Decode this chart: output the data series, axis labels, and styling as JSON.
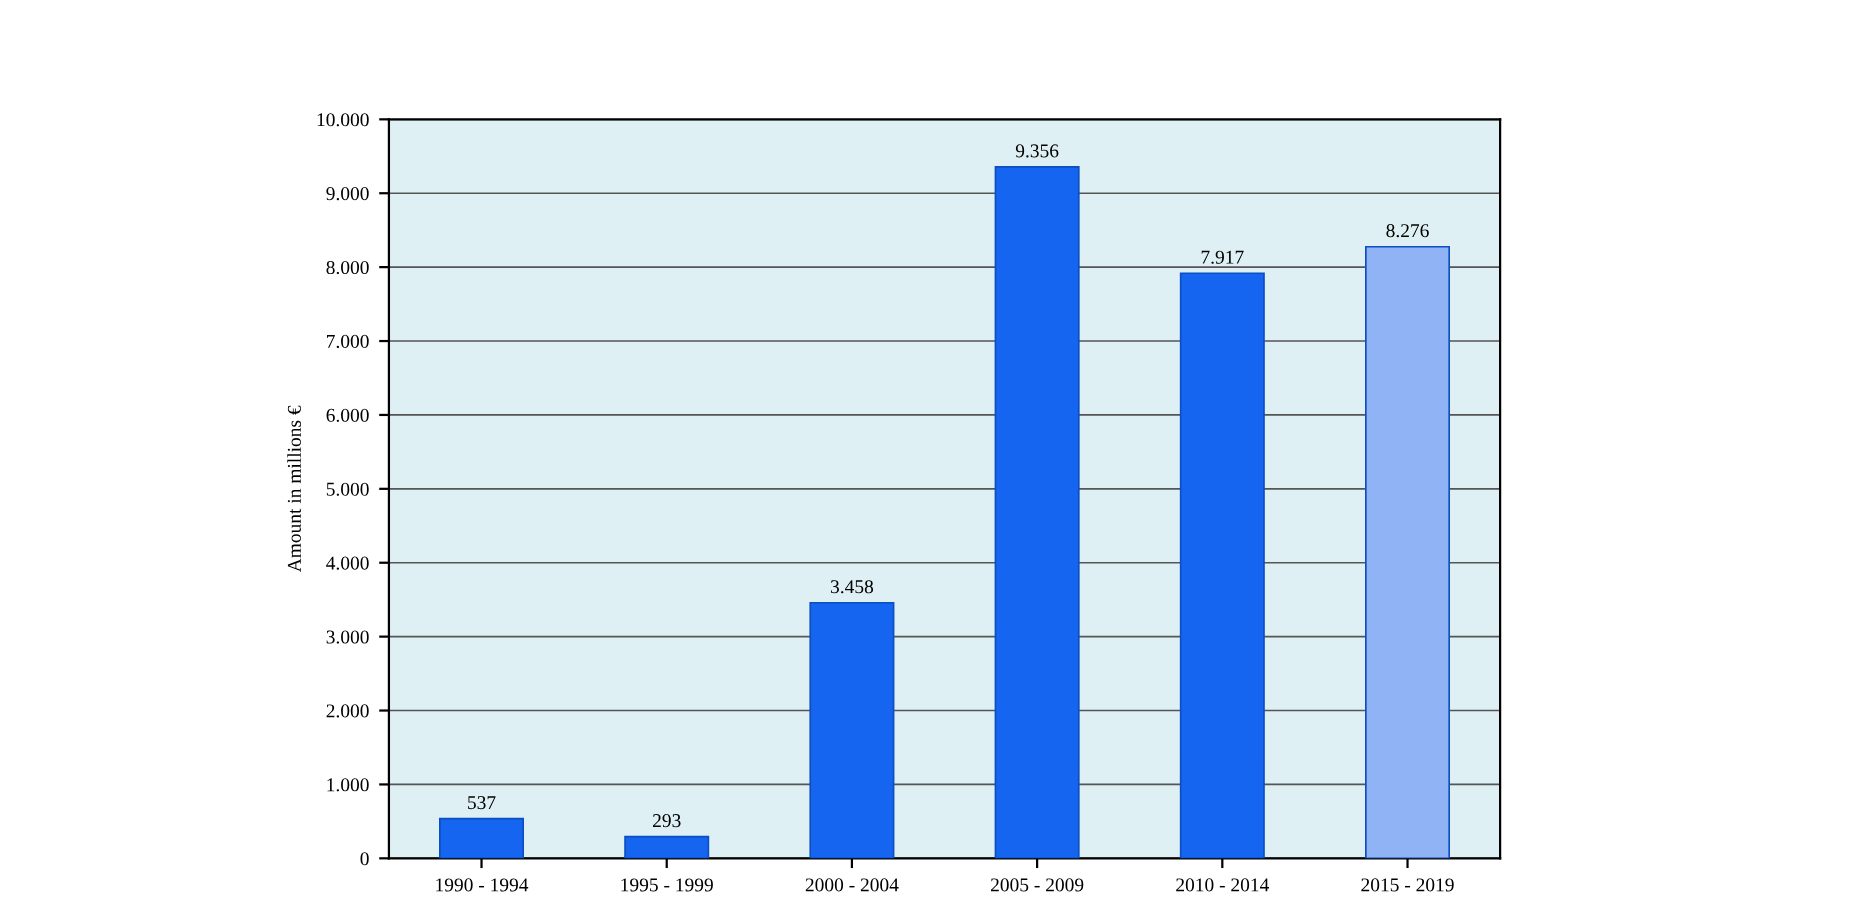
{
  "chart_data": {
    "type": "bar",
    "ylabel": "Amount in millions €",
    "categories": [
      "1990 - 1994",
      "1995 - 1999",
      "2000 - 2004",
      "2005 - 2009",
      "2010 - 2014",
      "2015 - 2019"
    ],
    "values": [
      537,
      293,
      3458,
      9356,
      7917,
      8276
    ],
    "value_labels": [
      "537",
      "293",
      "3.458",
      "9.356",
      "7.917",
      "8.276"
    ],
    "colors": [
      "#1565f0",
      "#1565f0",
      "#1565f0",
      "#1565f0",
      "#1565f0",
      "#8fb3f5"
    ],
    "ylim": [
      0,
      10000
    ],
    "yticks": [
      {
        "value": 0,
        "label": "0"
      },
      {
        "value": 1000,
        "label": "1.000"
      },
      {
        "value": 2000,
        "label": "2.000"
      },
      {
        "value": 3000,
        "label": "3.000"
      },
      {
        "value": 4000,
        "label": "4.000"
      },
      {
        "value": 5000,
        "label": "5.000"
      },
      {
        "value": 6000,
        "label": "6.000"
      },
      {
        "value": 7000,
        "label": "7.000"
      },
      {
        "value": 8000,
        "label": "8.000"
      },
      {
        "value": 9000,
        "label": "9.000"
      },
      {
        "value": 10000,
        "label": "10.000"
      }
    ],
    "grid": "y"
  }
}
